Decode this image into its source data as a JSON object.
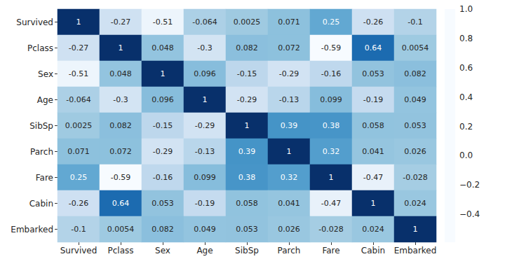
{
  "chart_data": {
    "type": "heatmap",
    "categories": [
      "Survived",
      "Pclass",
      "Sex",
      "Age",
      "SibSp",
      "Parch",
      "Fare",
      "Cabin",
      "Embarked"
    ],
    "cells": [
      [
        1,
        -0.27,
        -0.51,
        -0.064,
        0.0025,
        0.071,
        0.25,
        -0.26,
        -0.1
      ],
      [
        -0.27,
        1,
        0.048,
        -0.3,
        0.082,
        0.072,
        -0.59,
        0.64,
        0.0054
      ],
      [
        -0.51,
        0.048,
        1,
        0.096,
        -0.15,
        -0.29,
        -0.16,
        0.053,
        0.082
      ],
      [
        -0.064,
        -0.3,
        0.096,
        1,
        -0.29,
        -0.13,
        0.099,
        -0.19,
        0.049
      ],
      [
        0.0025,
        0.082,
        -0.15,
        -0.29,
        1,
        0.39,
        0.38,
        0.058,
        0.053
      ],
      [
        0.071,
        0.072,
        -0.29,
        -0.13,
        0.39,
        1,
        0.32,
        0.041,
        0.026
      ],
      [
        0.25,
        -0.59,
        -0.16,
        0.099,
        0.38,
        0.32,
        1,
        -0.47,
        -0.028
      ],
      [
        -0.26,
        0.64,
        0.053,
        -0.19,
        0.058,
        0.041,
        -0.47,
        1,
        0.024
      ],
      [
        -0.1,
        0.0054,
        0.082,
        0.049,
        0.053,
        0.026,
        -0.028,
        0.024,
        1
      ]
    ],
    "color": "Blues",
    "data_labels": true,
    "colorbar": {
      "range": [
        -0.59,
        1.0
      ],
      "ticks": [
        {
          "value": -0.4,
          "label": "−0.4"
        },
        {
          "value": -0.2,
          "label": "−0.2"
        },
        {
          "value": 0,
          "label": "0.0"
        },
        0.2,
        0.4,
        0.6,
        0.8,
        {
          "value": 1,
          "label": "1.0"
        }
      ]
    }
  }
}
